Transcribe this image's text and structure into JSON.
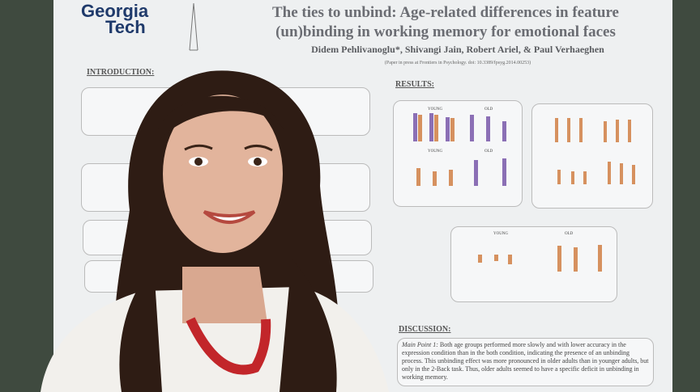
{
  "logo": {
    "line1": "Georgia",
    "line2": "Tech"
  },
  "poster": {
    "title_line1": "The ties to unbind: Age-related differences in feature",
    "title_line2": "(un)binding in working memory for emotional faces",
    "authors": "Didem Pehlivanoglu*, Shivangi Jain, Robert Ariel, & Paul Verhaeghen",
    "note": "(Paper in press at Frontiers in Psychology. doi: 10.3389/fpsyg.2014.00253)",
    "introduction_heading": "INTRODUCTION:",
    "results_heading": "RESULTS:",
    "discussion_heading": "DISCUSSION:",
    "panel_young": "YOUNG",
    "panel_old": "OLD",
    "discussion_point_label": "Main Point 1:",
    "discussion_point_text": "Both age groups performed more slowly and with lower accuracy in the expression condition than in the both condition, indicating the presence of an unbinding process. This unbinding effect was more pronounced in older adults than in younger adults, but only in the 2-Back task. Thus, older adults seemed to have a specific deficit in unbinding in working memory."
  }
}
